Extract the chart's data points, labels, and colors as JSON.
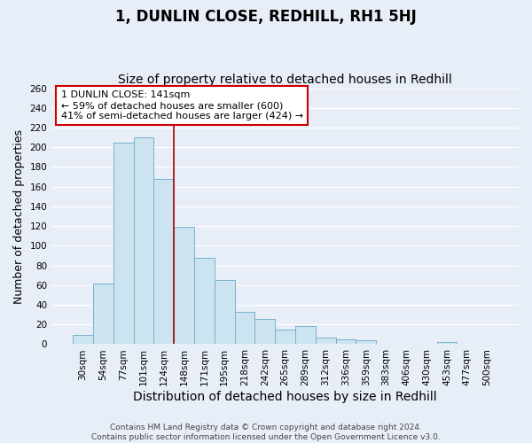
{
  "title": "1, DUNLIN CLOSE, REDHILL, RH1 5HJ",
  "subtitle": "Size of property relative to detached houses in Redhill",
  "xlabel": "Distribution of detached houses by size in Redhill",
  "ylabel": "Number of detached properties",
  "bar_labels": [
    "30sqm",
    "54sqm",
    "77sqm",
    "101sqm",
    "124sqm",
    "148sqm",
    "171sqm",
    "195sqm",
    "218sqm",
    "242sqm",
    "265sqm",
    "289sqm",
    "312sqm",
    "336sqm",
    "359sqm",
    "383sqm",
    "406sqm",
    "430sqm",
    "453sqm",
    "477sqm",
    "500sqm"
  ],
  "bar_values": [
    9,
    62,
    205,
    210,
    168,
    119,
    88,
    65,
    33,
    26,
    15,
    18,
    7,
    5,
    4,
    0,
    0,
    0,
    2,
    0,
    0
  ],
  "bar_color": "#cce4f0",
  "bar_edge_color": "#7ab0cc",
  "vline_color": "#aa0000",
  "annotation_title": "1 DUNLIN CLOSE: 141sqm",
  "annotation_line1": "← 59% of detached houses are smaller (600)",
  "annotation_line2": "41% of semi-detached houses are larger (424) →",
  "annotation_box_color": "#ffffff",
  "annotation_box_edge": "#cc0000",
  "ylim": [
    0,
    260
  ],
  "yticks": [
    0,
    20,
    40,
    60,
    80,
    100,
    120,
    140,
    160,
    180,
    200,
    220,
    240,
    260
  ],
  "footer1": "Contains HM Land Registry data © Crown copyright and database right 2024.",
  "footer2": "Contains public sector information licensed under the Open Government Licence v3.0.",
  "background_color": "#e8eef8",
  "plot_background": "#e8eef8",
  "grid_color": "#ffffff",
  "title_fontsize": 12,
  "subtitle_fontsize": 10,
  "ylabel_fontsize": 9,
  "xlabel_fontsize": 10,
  "tick_fontsize": 7.5,
  "footer_fontsize": 6.5
}
